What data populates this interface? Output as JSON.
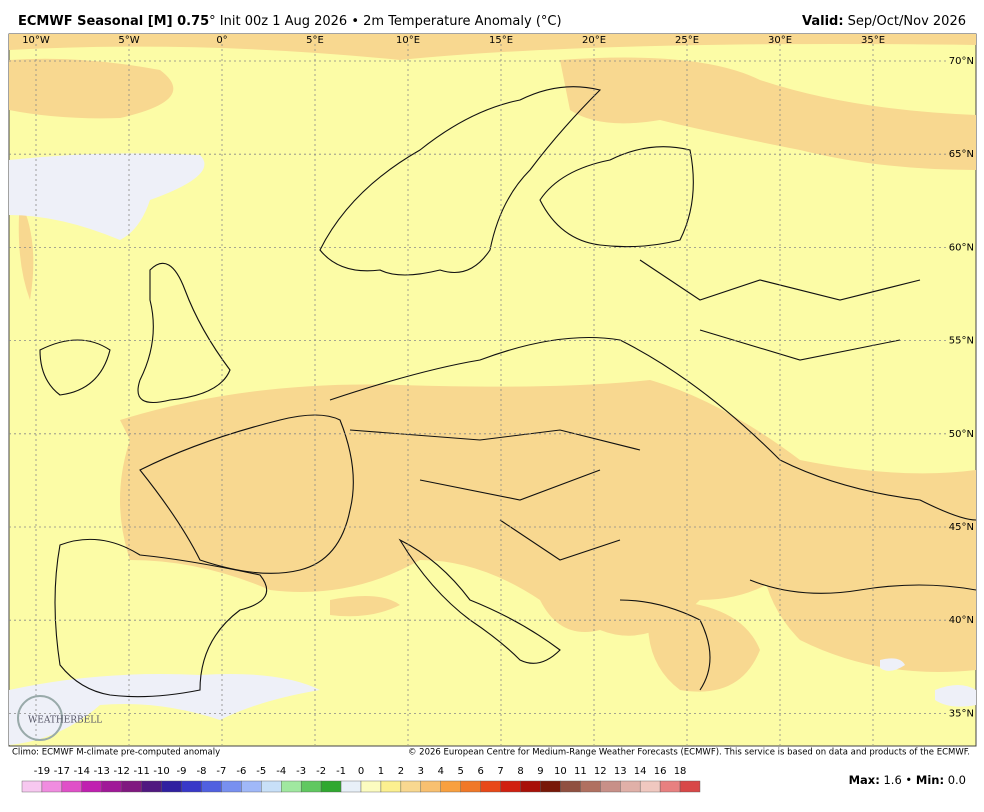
{
  "header": {
    "title_bold": "ECMWF Seasonal [M] 0.75",
    "title_rest": "° Init 00z 1 Aug 2026 • 2m Temperature Anomaly (°C)",
    "valid_label": "Valid:",
    "valid_value": "Sep/Oct/Nov 2026"
  },
  "map": {
    "lon_labels": [
      "10°W",
      "5°W",
      "0°",
      "5°E",
      "10°E",
      "15°E",
      "20°E",
      "25°E",
      "30°E",
      "35°E"
    ],
    "lat_labels": [
      "70°N",
      "65°N",
      "60°N",
      "55°N",
      "50°N",
      "45°N",
      "40°N",
      "35°N"
    ],
    "logo": "WEATHERBELL"
  },
  "footer": {
    "climo": "Climo: ECMWF M-climate pre-computed anomaly",
    "copyright": "© 2026 European Centre for Medium-Range Weather Forecasts (ECMWF). This service is based on data and products of the ECMWF."
  },
  "colorbar": {
    "labels": [
      -19,
      -17,
      -14,
      -13,
      -12,
      -11,
      -10,
      -9,
      -8,
      -7,
      -6,
      -5,
      -4,
      -3,
      -2,
      -1,
      0,
      1,
      2,
      3,
      4,
      5,
      6,
      7,
      8,
      9,
      10,
      11,
      12,
      13,
      14,
      16,
      18
    ],
    "colors": [
      "#f7c8f0",
      "#f08ce0",
      "#e050c8",
      "#c020b0",
      "#a01898",
      "#801880",
      "#501880",
      "#3020a0",
      "#3838c8",
      "#5060e0",
      "#7890f0",
      "#a0b8f8",
      "#c8e0f8",
      "#a0e8a0",
      "#60c860",
      "#30a830",
      "#e8f0f8",
      "#fcfcc0",
      "#fcf090",
      "#f8d890",
      "#f8c070",
      "#f8a040",
      "#f07828",
      "#e84818",
      "#d02010",
      "#a81008",
      "#781808",
      "#905040",
      "#b07060",
      "#c89088",
      "#e0b0a8",
      "#f0c8c0",
      "#e88080",
      "#d84848"
    ]
  },
  "stats": {
    "max_label": "Max:",
    "max": "1.6",
    "min_label": "Min:",
    "min": "0.0"
  }
}
